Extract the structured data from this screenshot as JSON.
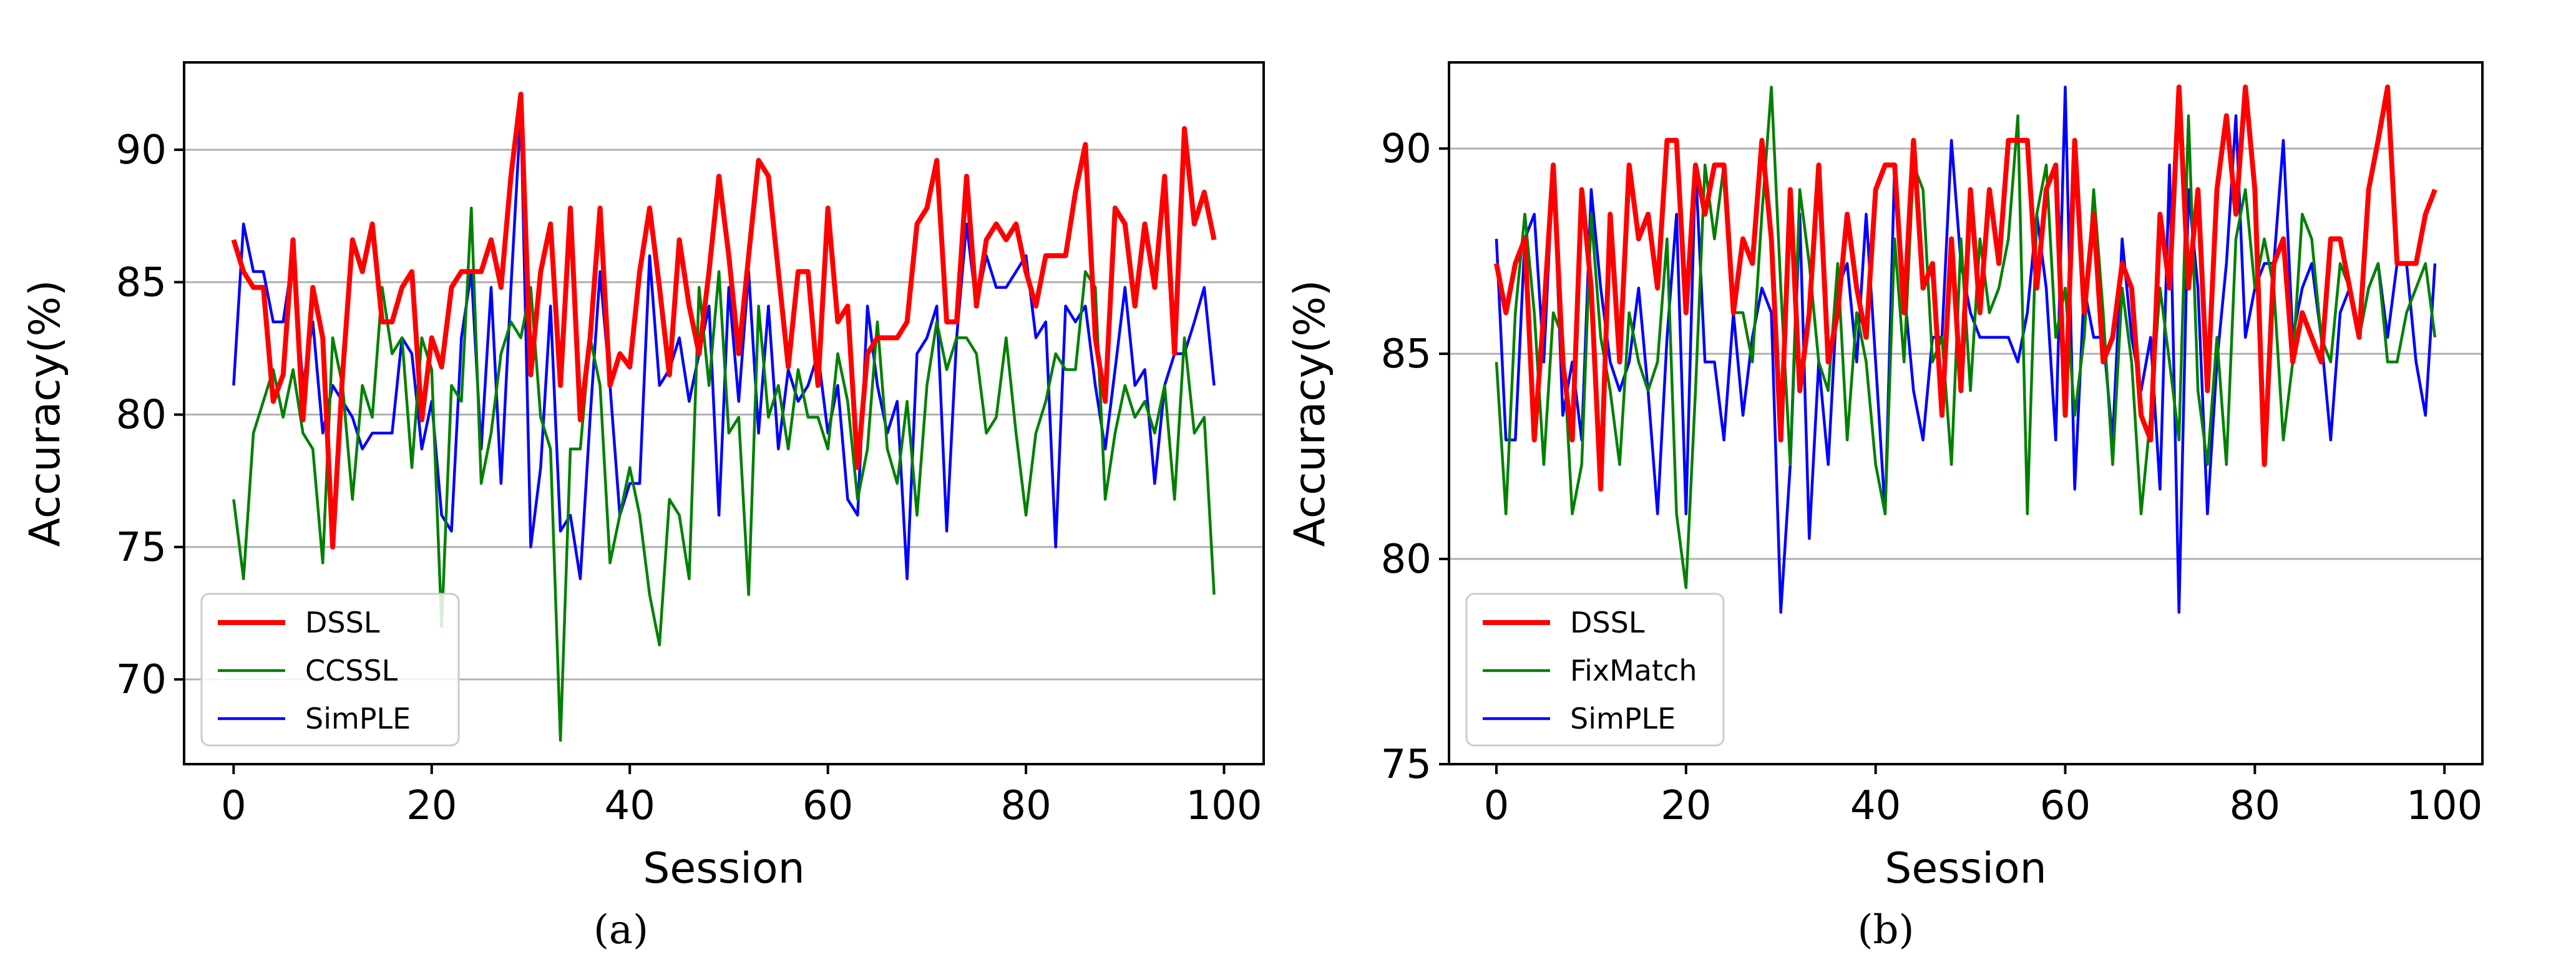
{
  "chart_data": [
    {
      "type": "line",
      "panel_label": "(a)",
      "xlabel": "Session",
      "ylabel": "Accuracy(%)",
      "xlim": [
        -5,
        104
      ],
      "ylim": [
        66.8,
        93.3
      ],
      "xticks": [
        0,
        20,
        40,
        60,
        80,
        100
      ],
      "yticks": [
        70,
        75,
        80,
        85,
        90
      ],
      "grid": "horizontal",
      "legend_position": "lower-left",
      "series": [
        {
          "name": "DSSL",
          "color": "#ff0000",
          "values": [
            86.6,
            85.4,
            84.8,
            84.8,
            80.5,
            81.5,
            86.6,
            79.8,
            84.8,
            82.9,
            75.0,
            81.5,
            86.6,
            85.4,
            87.2,
            83.5,
            83.5,
            84.8,
            85.4,
            79.8,
            82.9,
            81.8,
            84.8,
            85.4,
            85.4,
            85.4,
            86.6,
            84.8,
            89.0,
            92.1,
            81.5,
            85.4,
            87.2,
            81.1,
            87.8,
            79.8,
            82.9,
            87.8,
            81.1,
            82.3,
            81.8,
            85.4,
            87.8,
            84.8,
            81.5,
            86.6,
            84.1,
            82.3,
            85.4,
            89.0,
            86.0,
            82.3,
            86.0,
            89.6,
            89.0,
            85.4,
            81.8,
            85.4,
            85.4,
            81.1,
            87.8,
            83.5,
            84.1,
            78.0,
            82.3,
            82.9,
            82.9,
            82.9,
            83.5,
            87.2,
            87.8,
            89.6,
            83.5,
            83.5,
            89.0,
            84.1,
            86.6,
            87.2,
            86.6,
            87.2,
            85.4,
            84.1,
            86.0,
            86.0,
            86.0,
            88.4,
            90.2,
            82.9,
            80.5,
            87.8,
            87.2,
            84.1,
            87.2,
            84.8,
            89.0,
            82.3,
            90.8,
            87.2,
            88.4,
            86.6
          ]
        },
        {
          "name": "CCSSL",
          "color": "#008000",
          "values": [
            76.8,
            73.8,
            79.3,
            80.5,
            81.7,
            79.9,
            81.7,
            79.3,
            78.7,
            74.4,
            82.9,
            81.1,
            76.8,
            81.1,
            79.9,
            84.8,
            82.3,
            82.9,
            78.0,
            82.9,
            81.7,
            72.0,
            81.1,
            80.5,
            87.8,
            77.4,
            79.3,
            82.3,
            83.5,
            82.9,
            84.8,
            79.9,
            78.7,
            67.7,
            78.7,
            78.7,
            82.9,
            81.1,
            74.4,
            76.2,
            78.0,
            76.2,
            73.2,
            71.3,
            76.8,
            76.2,
            73.8,
            84.8,
            81.1,
            85.4,
            79.3,
            79.9,
            73.2,
            84.1,
            79.9,
            81.1,
            78.7,
            81.7,
            79.9,
            79.9,
            78.7,
            82.3,
            80.5,
            76.8,
            78.7,
            83.5,
            78.7,
            77.4,
            80.5,
            76.2,
            81.1,
            83.5,
            81.7,
            82.9,
            82.9,
            82.3,
            79.3,
            79.9,
            82.9,
            79.3,
            76.2,
            79.3,
            80.5,
            82.3,
            81.7,
            81.7,
            85.4,
            84.8,
            76.8,
            79.3,
            81.1,
            79.9,
            80.5,
            79.3,
            81.1,
            76.8,
            82.9,
            79.3,
            79.9,
            73.2
          ]
        },
        {
          "name": "SimPLE",
          "color": "#0000ff",
          "values": [
            81.1,
            87.2,
            85.4,
            85.4,
            83.5,
            83.5,
            86.0,
            81.1,
            83.5,
            79.3,
            81.1,
            80.5,
            79.9,
            78.7,
            79.3,
            79.3,
            79.3,
            82.9,
            82.3,
            78.7,
            80.5,
            76.2,
            75.6,
            82.9,
            85.4,
            78.7,
            84.8,
            77.4,
            84.8,
            91.5,
            75.0,
            78.0,
            84.1,
            75.6,
            76.2,
            73.8,
            79.9,
            85.4,
            81.1,
            76.2,
            77.4,
            77.4,
            86.0,
            81.1,
            81.7,
            82.9,
            80.5,
            82.3,
            84.1,
            76.2,
            84.8,
            80.5,
            85.4,
            79.3,
            84.1,
            78.7,
            81.7,
            80.5,
            81.1,
            82.3,
            79.3,
            81.1,
            76.8,
            76.2,
            84.1,
            81.1,
            79.3,
            80.5,
            73.8,
            82.3,
            82.9,
            84.1,
            75.6,
            82.9,
            87.2,
            84.1,
            86.0,
            84.8,
            84.8,
            85.4,
            86.0,
            82.9,
            83.5,
            75.0,
            84.1,
            83.5,
            84.1,
            81.1,
            78.7,
            81.7,
            84.8,
            81.1,
            81.7,
            77.4,
            81.1,
            82.3,
            82.3,
            83.5,
            84.8,
            81.1
          ]
        }
      ]
    },
    {
      "type": "line",
      "panel_label": "(b)",
      "xlabel": "Session",
      "ylabel": "Accuracy(%)",
      "xlim": [
        -5,
        104
      ],
      "ylim": [
        75.0,
        92.1
      ],
      "xticks": [
        0,
        20,
        40,
        60,
        80,
        100
      ],
      "yticks": [
        75,
        80,
        85,
        90
      ],
      "grid": "horizontal",
      "legend_position": "lower-left",
      "series": [
        {
          "name": "DSSL",
          "color": "#ff0000",
          "values": [
            87.2,
            86.0,
            87.2,
            87.8,
            82.9,
            86.0,
            89.6,
            84.8,
            82.9,
            89.0,
            86.6,
            81.7,
            88.4,
            84.8,
            89.6,
            87.8,
            88.4,
            86.6,
            90.2,
            90.2,
            86.0,
            89.6,
            88.4,
            89.6,
            89.6,
            86.0,
            87.8,
            87.2,
            90.2,
            87.8,
            82.9,
            89.0,
            84.1,
            86.0,
            89.6,
            84.8,
            86.0,
            88.4,
            86.6,
            85.4,
            89.0,
            89.6,
            89.6,
            86.0,
            90.2,
            86.6,
            87.2,
            83.5,
            87.8,
            84.1,
            89.0,
            86.0,
            89.0,
            87.2,
            90.2,
            90.2,
            90.2,
            86.6,
            89.0,
            89.6,
            83.5,
            90.2,
            86.0,
            88.4,
            84.8,
            85.4,
            87.2,
            86.6,
            83.5,
            82.9,
            88.4,
            86.6,
            91.5,
            86.6,
            89.0,
            84.1,
            89.0,
            90.8,
            88.4,
            91.5,
            89.0,
            82.3,
            87.2,
            87.8,
            84.8,
            86.0,
            85.4,
            84.8,
            87.8,
            87.8,
            86.6,
            85.4,
            89.0,
            90.2,
            91.5,
            87.2,
            87.2,
            87.2,
            88.4,
            89.0
          ]
        },
        {
          "name": "FixMatch",
          "color": "#008000",
          "values": [
            84.8,
            81.1,
            86.0,
            88.4,
            86.0,
            82.3,
            86.0,
            85.4,
            81.1,
            82.3,
            88.4,
            85.4,
            84.1,
            82.3,
            86.0,
            84.8,
            84.1,
            84.8,
            87.8,
            81.1,
            79.3,
            84.1,
            89.6,
            87.8,
            89.6,
            86.0,
            86.0,
            84.8,
            88.4,
            91.5,
            86.6,
            82.3,
            89.0,
            87.2,
            84.8,
            84.1,
            87.2,
            82.9,
            86.0,
            84.8,
            82.3,
            81.1,
            87.8,
            84.8,
            89.6,
            89.0,
            84.8,
            85.4,
            82.3,
            87.8,
            84.1,
            87.8,
            86.0,
            86.6,
            87.8,
            90.8,
            81.1,
            88.4,
            89.6,
            85.4,
            86.6,
            83.5,
            85.4,
            89.0,
            86.0,
            82.3,
            86.6,
            84.8,
            81.1,
            83.5,
            86.6,
            84.8,
            82.9,
            90.8,
            84.1,
            82.3,
            85.4,
            82.3,
            87.8,
            89.0,
            86.6,
            87.8,
            86.6,
            82.9,
            84.8,
            88.4,
            87.8,
            85.4,
            84.8,
            87.2,
            86.6,
            85.4,
            86.6,
            87.2,
            84.8,
            84.8,
            86.0,
            86.6,
            87.2,
            85.4
          ]
        },
        {
          "name": "SimPLE",
          "color": "#0000ff",
          "values": [
            87.8,
            82.9,
            82.9,
            87.8,
            88.4,
            84.8,
            89.6,
            83.5,
            84.8,
            82.9,
            89.0,
            86.6,
            84.8,
            84.1,
            84.8,
            86.6,
            84.1,
            81.1,
            85.4,
            88.4,
            81.1,
            89.6,
            84.8,
            84.8,
            82.9,
            86.0,
            83.5,
            85.4,
            86.6,
            86.0,
            78.7,
            82.3,
            88.4,
            80.5,
            84.8,
            82.3,
            86.6,
            87.2,
            84.8,
            88.4,
            84.8,
            81.1,
            89.6,
            86.6,
            84.1,
            82.9,
            85.4,
            85.4,
            90.2,
            87.2,
            86.0,
            85.4,
            85.4,
            85.4,
            85.4,
            84.8,
            86.0,
            88.4,
            86.6,
            82.9,
            91.5,
            81.7,
            86.6,
            85.4,
            85.4,
            82.9,
            87.8,
            85.4,
            84.1,
            85.4,
            81.7,
            89.6,
            78.7,
            89.0,
            86.6,
            81.1,
            84.8,
            87.2,
            90.8,
            85.4,
            86.6,
            87.2,
            87.2,
            90.2,
            85.4,
            86.6,
            87.2,
            85.4,
            82.9,
            86.0,
            86.6,
            85.4,
            86.6,
            87.2,
            85.4,
            87.2,
            87.2,
            84.8,
            83.5,
            87.2
          ]
        }
      ]
    }
  ]
}
